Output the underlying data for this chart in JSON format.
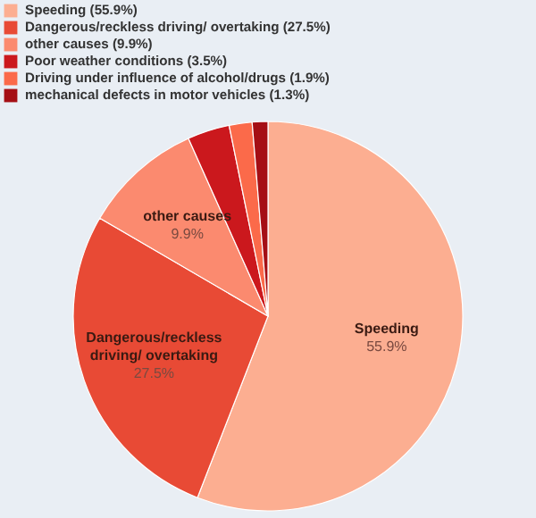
{
  "chart_data": {
    "type": "pie",
    "categories": [
      "Speeding (55.9%)",
      "Dangerous/reckless driving/ overtaking (27.5%)",
      "other causes (9.9%)",
      "Poor weather conditions (3.5%)",
      "Driving under influence of alcohol/drugs (1.9%)",
      "mechanical defects in motor vehicles (1.3%)"
    ],
    "values": [
      55.9,
      27.5,
      9.9,
      3.5,
      1.9,
      1.3
    ],
    "colors": [
      "#fcae91",
      "#e84a35",
      "#fb8a6f",
      "#cb181d",
      "#fb6a4a",
      "#a50f15"
    ],
    "value_labels": [
      "55.9%",
      "27.5%",
      "9.9%",
      null,
      null,
      null
    ],
    "annotations": [
      {
        "text": "Speeding",
        "x": "Speeding (55.9%)"
      },
      {
        "text": "Dangerous/reckless driving/ overtaking",
        "x": "Dangerous/reckless driving/ overtaking (27.5%)"
      },
      {
        "text": "other causes",
        "x": "other causes (9.9%)"
      }
    ],
    "legend": "top"
  }
}
